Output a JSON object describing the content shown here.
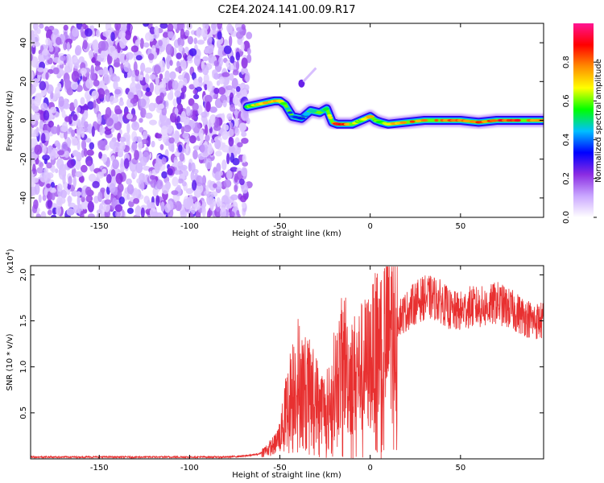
{
  "figure": {
    "title": "C2E4.2024.141.00.09.R17"
  },
  "chart_data": [
    {
      "type": "heatmap",
      "title": "",
      "xlabel": "Height of straight line (km)",
      "ylabel": "Frequency (Hz)",
      "xlim": [
        -188,
        96
      ],
      "ylim": [
        -50,
        50
      ],
      "xticks": [
        -150,
        -100,
        -50,
        0,
        50
      ],
      "yticks": [
        -40,
        -20,
        0,
        20,
        40
      ],
      "colorbar": {
        "label": "Normalized spectral amplitude",
        "range": [
          0,
          1
        ],
        "ticks": [
          0.0,
          0.2,
          0.4,
          0.6,
          0.8
        ],
        "colormap": [
          "#ffffff",
          "#c9a6ff",
          "#8a2be2",
          "#0000ff",
          "#00bfff",
          "#00ff00",
          "#ffff00",
          "#ff8c00",
          "#ff0000",
          "#ff1493"
        ]
      },
      "noise_region": {
        "x_range": [
          -188,
          -67
        ],
        "y_range": [
          -50,
          50
        ],
        "typical_amplitude": 0.05
      },
      "signal_track": {
        "x": [
          -68,
          -63,
          -58,
          -53,
          -50,
          -47,
          -43,
          -38,
          -33,
          -28,
          -24,
          -21,
          -18,
          -14,
          -10,
          -5,
          0,
          3,
          6,
          10,
          20,
          30,
          40,
          50,
          60,
          70,
          80,
          90,
          96
        ],
        "frequency": [
          7,
          8,
          9,
          10,
          10,
          8,
          2,
          1,
          5,
          4,
          6,
          -1,
          -2,
          -2,
          -2,
          0,
          2,
          0,
          -1,
          -2,
          -1,
          0,
          0,
          0,
          -1,
          0,
          0,
          0,
          0
        ],
        "peak_amplitude": [
          0.6,
          0.7,
          0.8,
          0.8,
          0.7,
          0.5,
          0.4,
          0.4,
          0.5,
          0.5,
          0.6,
          0.9,
          0.9,
          0.9,
          0.7,
          0.6,
          0.8,
          0.6,
          0.6,
          0.7,
          0.8,
          0.85,
          0.85,
          0.85,
          0.85,
          0.9,
          0.9,
          0.85,
          0.85
        ]
      },
      "spot": {
        "x": -38,
        "frequency": 19,
        "amplitude": 0.1
      }
    },
    {
      "type": "line",
      "title": "",
      "xlabel": "Height of straight line (km)",
      "ylabel": "SNR (10 * v/v)",
      "y_multiplier_label": "(x10",
      "y_multiplier_exp": "4",
      "y_multiplier_close": ")",
      "xlim": [
        -188,
        96
      ],
      "ylim": [
        0,
        2.1
      ],
      "xticks": [
        -150,
        -100,
        -50,
        0,
        50
      ],
      "yticks": [
        0.5,
        1.0,
        1.5,
        2.0
      ],
      "series": [
        {
          "color": "#e83030",
          "x": [
            -188,
            -160,
            -130,
            -100,
            -80,
            -70,
            -62,
            -57,
            -53,
            -50,
            -48,
            -46,
            -44,
            -42,
            -40,
            -37,
            -34,
            -31,
            -28,
            -25,
            -22,
            -20,
            -18,
            -16,
            -14,
            -12,
            -10,
            -7,
            -4,
            0,
            4,
            8,
            12,
            16,
            20,
            25,
            30,
            35,
            40,
            45,
            50,
            55,
            60,
            65,
            70,
            75,
            80,
            85,
            90,
            96
          ],
          "values": [
            0.02,
            0.02,
            0.02,
            0.02,
            0.02,
            0.03,
            0.05,
            0.1,
            0.15,
            0.25,
            0.4,
            0.6,
            0.7,
            0.8,
            0.9,
            0.8,
            0.75,
            0.7,
            0.6,
            0.55,
            0.6,
            0.8,
            0.9,
            1.0,
            1.1,
            0.9,
            0.9,
            0.95,
            1.0,
            1.05,
            1.2,
            1.3,
            1.45,
            1.55,
            1.6,
            1.7,
            1.75,
            1.75,
            1.7,
            1.6,
            1.6,
            1.65,
            1.65,
            1.65,
            1.7,
            1.65,
            1.6,
            1.55,
            1.5,
            1.5
          ]
        }
      ]
    }
  ]
}
